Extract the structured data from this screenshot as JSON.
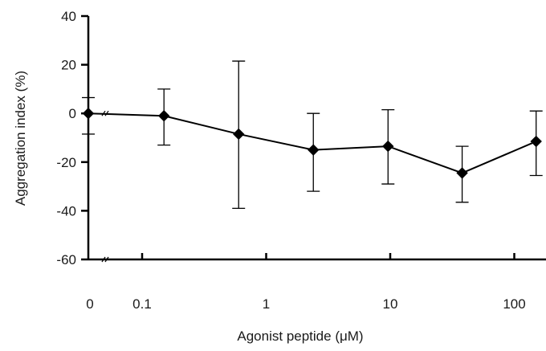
{
  "chart_data": {
    "type": "line",
    "title": "",
    "xlabel": "Agonist peptide (μM)",
    "ylabel": "Aggregation index (%)",
    "x_scale": "log",
    "x_axis_break": true,
    "x_tick_labels": [
      "0",
      "0.1",
      "1",
      "10",
      "100"
    ],
    "x_tick_values": [
      0,
      0.1,
      1,
      10,
      100
    ],
    "ylim": [
      -60,
      40
    ],
    "y_tick_labels": [
      "40",
      "20",
      "0",
      "-20",
      "-40",
      "-60"
    ],
    "y_tick_values": [
      40,
      20,
      0,
      -20,
      -40,
      -60
    ],
    "grid": false,
    "legend": "none",
    "marker": "diamond",
    "line_color": "#000000",
    "marker_color": "#000000",
    "series": [
      {
        "x": [
          0,
          0.15,
          0.6,
          2.4,
          9.6,
          38,
          150
        ],
        "y": [
          0,
          -1,
          -8.5,
          -15,
          -13.5,
          -24.5,
          -11.5
        ],
        "err_high": [
          6.5,
          11,
          30,
          15,
          15,
          11,
          12.5
        ],
        "err_low": [
          8.5,
          12,
          30.5,
          17,
          15.5,
          12,
          14
        ]
      }
    ]
  }
}
